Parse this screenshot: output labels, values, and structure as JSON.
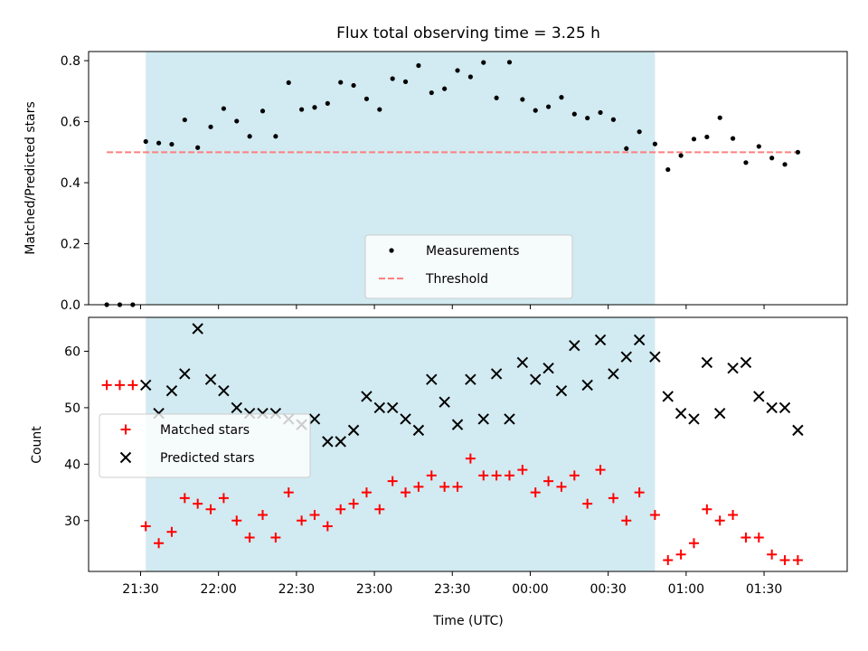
{
  "chart_data": {
    "title": "Flux total observing time = 3.25 h",
    "x_axis": {
      "label": "Time (UTC)",
      "ticks": [
        "21:30",
        "22:00",
        "22:30",
        "23:00",
        "23:30",
        "00:00",
        "00:30",
        "01:00",
        "01:30"
      ],
      "tick_times": [
        "2000-01-01T21:30",
        "2000-01-01T22:00",
        "2000-01-01T22:30",
        "2000-01-01T23:00",
        "2000-01-01T23:30",
        "2000-01-02T00:00",
        "2000-01-02T00:30",
        "2000-01-02T01:00",
        "2000-01-02T01:30"
      ],
      "range": [
        "2000-01-01T21:10",
        "2000-01-02T02:02"
      ]
    },
    "shaded_interval": [
      "2000-01-01T21:32",
      "2000-01-02T00:48"
    ],
    "colors": {
      "shade": "#add8e6",
      "threshold": "#ff7f7f",
      "matched": "#ff0000",
      "predicted": "#000000",
      "measurements": "#000000"
    },
    "charts": [
      {
        "type": "scatter",
        "ylabel": "Matched/Predicted stars",
        "ylim": [
          0,
          0.83
        ],
        "yticks": [
          "0.0",
          "0.2",
          "0.4",
          "0.6",
          "0.8"
        ],
        "ytick_values": [
          0,
          0.2,
          0.4,
          0.6,
          0.8
        ],
        "legend_position": "lower-center",
        "legend": [
          {
            "label": "Measurements",
            "marker": "dot"
          },
          {
            "label": "Threshold",
            "marker": "dashed-line"
          }
        ],
        "threshold": {
          "y": 0.5,
          "x_start": "2000-01-01T21:17",
          "x_end": "2000-01-02T01:45"
        },
        "series": [
          {
            "name": "Measurements",
            "x": [
              "2000-01-01T21:17",
              "2000-01-01T21:22",
              "2000-01-01T21:27",
              "2000-01-01T21:32",
              "2000-01-01T21:37",
              "2000-01-01T21:42",
              "2000-01-01T21:47",
              "2000-01-01T21:52",
              "2000-01-01T21:57",
              "2000-01-01T22:02",
              "2000-01-01T22:07",
              "2000-01-01T22:12",
              "2000-01-01T22:17",
              "2000-01-01T22:22",
              "2000-01-01T22:27",
              "2000-01-01T22:32",
              "2000-01-01T22:37",
              "2000-01-01T22:42",
              "2000-01-01T22:47",
              "2000-01-01T22:52",
              "2000-01-01T22:57",
              "2000-01-01T23:02",
              "2000-01-01T23:07",
              "2000-01-01T23:12",
              "2000-01-01T23:17",
              "2000-01-01T23:22",
              "2000-01-01T23:27",
              "2000-01-01T23:32",
              "2000-01-01T23:37",
              "2000-01-01T23:42",
              "2000-01-01T23:47",
              "2000-01-01T23:52",
              "2000-01-01T23:57",
              "2000-01-02T00:02",
              "2000-01-02T00:07",
              "2000-01-02T00:12",
              "2000-01-02T00:17",
              "2000-01-02T00:22",
              "2000-01-02T00:27",
              "2000-01-02T00:32",
              "2000-01-02T00:37",
              "2000-01-02T00:42",
              "2000-01-02T00:48",
              "2000-01-02T00:53",
              "2000-01-02T00:58",
              "2000-01-02T01:03",
              "2000-01-02T01:08",
              "2000-01-02T01:13",
              "2000-01-02T01:18",
              "2000-01-02T01:23",
              "2000-01-02T01:28",
              "2000-01-02T01:33",
              "2000-01-02T01:38",
              "2000-01-02T01:43"
            ],
            "y": [
              0,
              0,
              0,
              0.535,
              0.53,
              0.526,
              0.606,
              0.515,
              0.583,
              0.643,
              0.602,
              0.552,
              0.635,
              0.552,
              0.728,
              0.64,
              0.647,
              0.66,
              0.729,
              0.719,
              0.675,
              0.64,
              0.741,
              0.731,
              0.784,
              0.695,
              0.708,
              0.768,
              0.747,
              0.794,
              0.678,
              0.795,
              0.673,
              0.637,
              0.649,
              0.68,
              0.625,
              0.612,
              0.63,
              0.607,
              0.512,
              0.567,
              0.527,
              0.443,
              0.489,
              0.543,
              0.55,
              0.613,
              0.545,
              0.466,
              0.519,
              0.481,
              0.46,
              0.5
            ]
          }
        ]
      },
      {
        "type": "scatter",
        "ylabel": "Count",
        "ylim": [
          21,
          66
        ],
        "yticks": [
          "30",
          "40",
          "50",
          "60"
        ],
        "ytick_values": [
          30,
          40,
          50,
          60
        ],
        "legend_position": "middle-left",
        "legend": [
          {
            "label": "Matched stars",
            "marker": "plus"
          },
          {
            "label": "Predicted stars",
            "marker": "cross"
          }
        ],
        "series": [
          {
            "name": "Matched stars",
            "x": [
              "2000-01-01T21:17",
              "2000-01-01T21:22",
              "2000-01-01T21:27",
              "2000-01-01T21:32",
              "2000-01-01T21:37",
              "2000-01-01T21:42",
              "2000-01-01T21:47",
              "2000-01-01T21:52",
              "2000-01-01T21:57",
              "2000-01-01T22:02",
              "2000-01-01T22:07",
              "2000-01-01T22:12",
              "2000-01-01T22:17",
              "2000-01-01T22:22",
              "2000-01-01T22:27",
              "2000-01-01T22:32",
              "2000-01-01T22:37",
              "2000-01-01T22:42",
              "2000-01-01T22:47",
              "2000-01-01T22:52",
              "2000-01-01T22:57",
              "2000-01-01T23:02",
              "2000-01-01T23:07",
              "2000-01-01T23:12",
              "2000-01-01T23:17",
              "2000-01-01T23:22",
              "2000-01-01T23:27",
              "2000-01-01T23:32",
              "2000-01-01T23:37",
              "2000-01-01T23:42",
              "2000-01-01T23:47",
              "2000-01-01T23:52",
              "2000-01-01T23:57",
              "2000-01-02T00:02",
              "2000-01-02T00:07",
              "2000-01-02T00:12",
              "2000-01-02T00:17",
              "2000-01-02T00:22",
              "2000-01-02T00:27",
              "2000-01-02T00:32",
              "2000-01-02T00:37",
              "2000-01-02T00:42",
              "2000-01-02T00:48",
              "2000-01-02T00:53",
              "2000-01-02T00:58",
              "2000-01-02T01:03",
              "2000-01-02T01:08",
              "2000-01-02T01:13",
              "2000-01-02T01:18",
              "2000-01-02T01:23",
              "2000-01-02T01:28",
              "2000-01-02T01:33",
              "2000-01-02T01:38",
              "2000-01-02T01:43"
            ],
            "y": [
              54,
              54,
              54,
              29,
              26,
              28,
              34,
              33,
              32,
              34,
              30,
              27,
              31,
              27,
              35,
              30,
              31,
              29,
              32,
              33,
              35,
              32,
              37,
              35,
              36,
              38,
              36,
              36,
              41,
              38,
              38,
              38,
              39,
              35,
              37,
              36,
              38,
              33,
              39,
              34,
              30,
              35,
              31,
              23,
              24,
              26,
              32,
              30,
              31,
              27,
              27,
              24,
              23,
              23
            ]
          },
          {
            "name": "Predicted stars",
            "x": [
              "2000-01-01T21:32",
              "2000-01-01T21:37",
              "2000-01-01T21:42",
              "2000-01-01T21:47",
              "2000-01-01T21:52",
              "2000-01-01T21:57",
              "2000-01-01T22:02",
              "2000-01-01T22:07",
              "2000-01-01T22:12",
              "2000-01-01T22:17",
              "2000-01-01T22:22",
              "2000-01-01T22:27",
              "2000-01-01T22:32",
              "2000-01-01T22:37",
              "2000-01-01T22:42",
              "2000-01-01T22:47",
              "2000-01-01T22:52",
              "2000-01-01T22:57",
              "2000-01-01T23:02",
              "2000-01-01T23:07",
              "2000-01-01T23:12",
              "2000-01-01T23:17",
              "2000-01-01T23:22",
              "2000-01-01T23:27",
              "2000-01-01T23:32",
              "2000-01-01T23:37",
              "2000-01-01T23:42",
              "2000-01-01T23:47",
              "2000-01-01T23:52",
              "2000-01-01T23:57",
              "2000-01-02T00:02",
              "2000-01-02T00:07",
              "2000-01-02T00:12",
              "2000-01-02T00:17",
              "2000-01-02T00:22",
              "2000-01-02T00:27",
              "2000-01-02T00:32",
              "2000-01-02T00:37",
              "2000-01-02T00:42",
              "2000-01-02T00:48",
              "2000-01-02T00:53",
              "2000-01-02T00:58",
              "2000-01-02T01:03",
              "2000-01-02T01:08",
              "2000-01-02T01:13",
              "2000-01-02T01:18",
              "2000-01-02T01:23",
              "2000-01-02T01:28",
              "2000-01-02T01:33",
              "2000-01-02T01:38",
              "2000-01-02T01:43"
            ],
            "y": [
              54,
              49,
              53,
              56,
              64,
              55,
              53,
              50,
              49,
              49,
              49,
              48,
              47,
              48,
              44,
              44,
              46,
              52,
              50,
              50,
              48,
              46,
              55,
              51,
              47,
              55,
              48,
              56,
              48,
              58,
              55,
              57,
              53,
              61,
              54,
              62,
              56,
              59,
              62,
              59,
              52,
              49,
              48,
              58,
              49,
              57,
              58,
              52,
              50,
              50,
              46
            ]
          }
        ]
      }
    ]
  }
}
